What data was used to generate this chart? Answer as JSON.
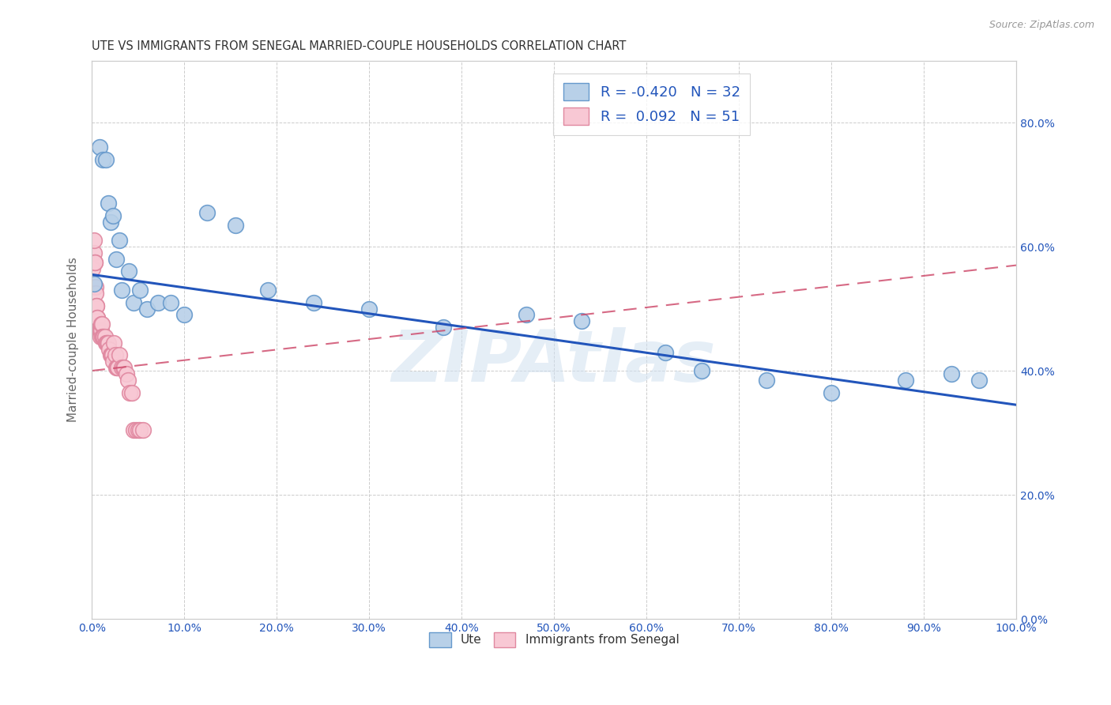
{
  "title": "UTE VS IMMIGRANTS FROM SENEGAL MARRIED-COUPLE HOUSEHOLDS CORRELATION CHART",
  "source": "Source: ZipAtlas.com",
  "ylabel": "Married-couple Households",
  "watermark": "ZIPAtlas",
  "ute_R": -0.42,
  "ute_N": 32,
  "senegal_R": 0.092,
  "senegal_N": 51,
  "ute_color": "#b8d0e8",
  "ute_edge_color": "#6699cc",
  "senegal_color": "#f8c8d4",
  "senegal_edge_color": "#e088a0",
  "trend_ute_color": "#2255bb",
  "trend_senegal_color": "#cc4466",
  "xlim": [
    0,
    1.0
  ],
  "ylim": [
    0.0,
    0.9
  ],
  "xticks": [
    0.0,
    0.1,
    0.2,
    0.3,
    0.4,
    0.5,
    0.6,
    0.7,
    0.8,
    0.9,
    1.0
  ],
  "yticks": [
    0.0,
    0.2,
    0.4,
    0.6,
    0.8
  ],
  "ute_x": [
    0.002,
    0.008,
    0.012,
    0.015,
    0.018,
    0.02,
    0.023,
    0.026,
    0.03,
    0.032,
    0.04,
    0.045,
    0.052,
    0.06,
    0.072,
    0.085,
    0.1,
    0.125,
    0.155,
    0.19,
    0.24,
    0.3,
    0.38,
    0.47,
    0.53,
    0.62,
    0.66,
    0.73,
    0.8,
    0.88,
    0.93,
    0.96
  ],
  "ute_y": [
    0.54,
    0.76,
    0.74,
    0.74,
    0.67,
    0.64,
    0.65,
    0.58,
    0.61,
    0.53,
    0.56,
    0.51,
    0.53,
    0.5,
    0.51,
    0.51,
    0.49,
    0.655,
    0.635,
    0.53,
    0.51,
    0.5,
    0.47,
    0.49,
    0.48,
    0.43,
    0.4,
    0.385,
    0.365,
    0.385,
    0.395,
    0.385
  ],
  "senegal_x": [
    0.001,
    0.002,
    0.002,
    0.003,
    0.003,
    0.004,
    0.004,
    0.005,
    0.005,
    0.006,
    0.006,
    0.007,
    0.007,
    0.008,
    0.008,
    0.009,
    0.009,
    0.01,
    0.01,
    0.011,
    0.011,
    0.012,
    0.013,
    0.014,
    0.015,
    0.016,
    0.017,
    0.018,
    0.019,
    0.02,
    0.021,
    0.022,
    0.023,
    0.024,
    0.025,
    0.026,
    0.027,
    0.028,
    0.03,
    0.032,
    0.034,
    0.035,
    0.037,
    0.039,
    0.041,
    0.043,
    0.045,
    0.048,
    0.05,
    0.052,
    0.055
  ],
  "senegal_y": [
    0.565,
    0.59,
    0.61,
    0.575,
    0.575,
    0.535,
    0.525,
    0.505,
    0.505,
    0.485,
    0.485,
    0.465,
    0.465,
    0.465,
    0.465,
    0.465,
    0.455,
    0.465,
    0.475,
    0.475,
    0.455,
    0.455,
    0.455,
    0.455,
    0.445,
    0.445,
    0.445,
    0.445,
    0.435,
    0.425,
    0.425,
    0.425,
    0.415,
    0.445,
    0.425,
    0.405,
    0.405,
    0.405,
    0.425,
    0.405,
    0.405,
    0.405,
    0.395,
    0.385,
    0.365,
    0.365,
    0.305,
    0.305,
    0.305,
    0.305,
    0.305
  ],
  "background_color": "#ffffff",
  "grid_color": "#cccccc",
  "title_fontsize": 10.5,
  "tick_label_color": "#2255bb",
  "ylabel_color": "#666666"
}
